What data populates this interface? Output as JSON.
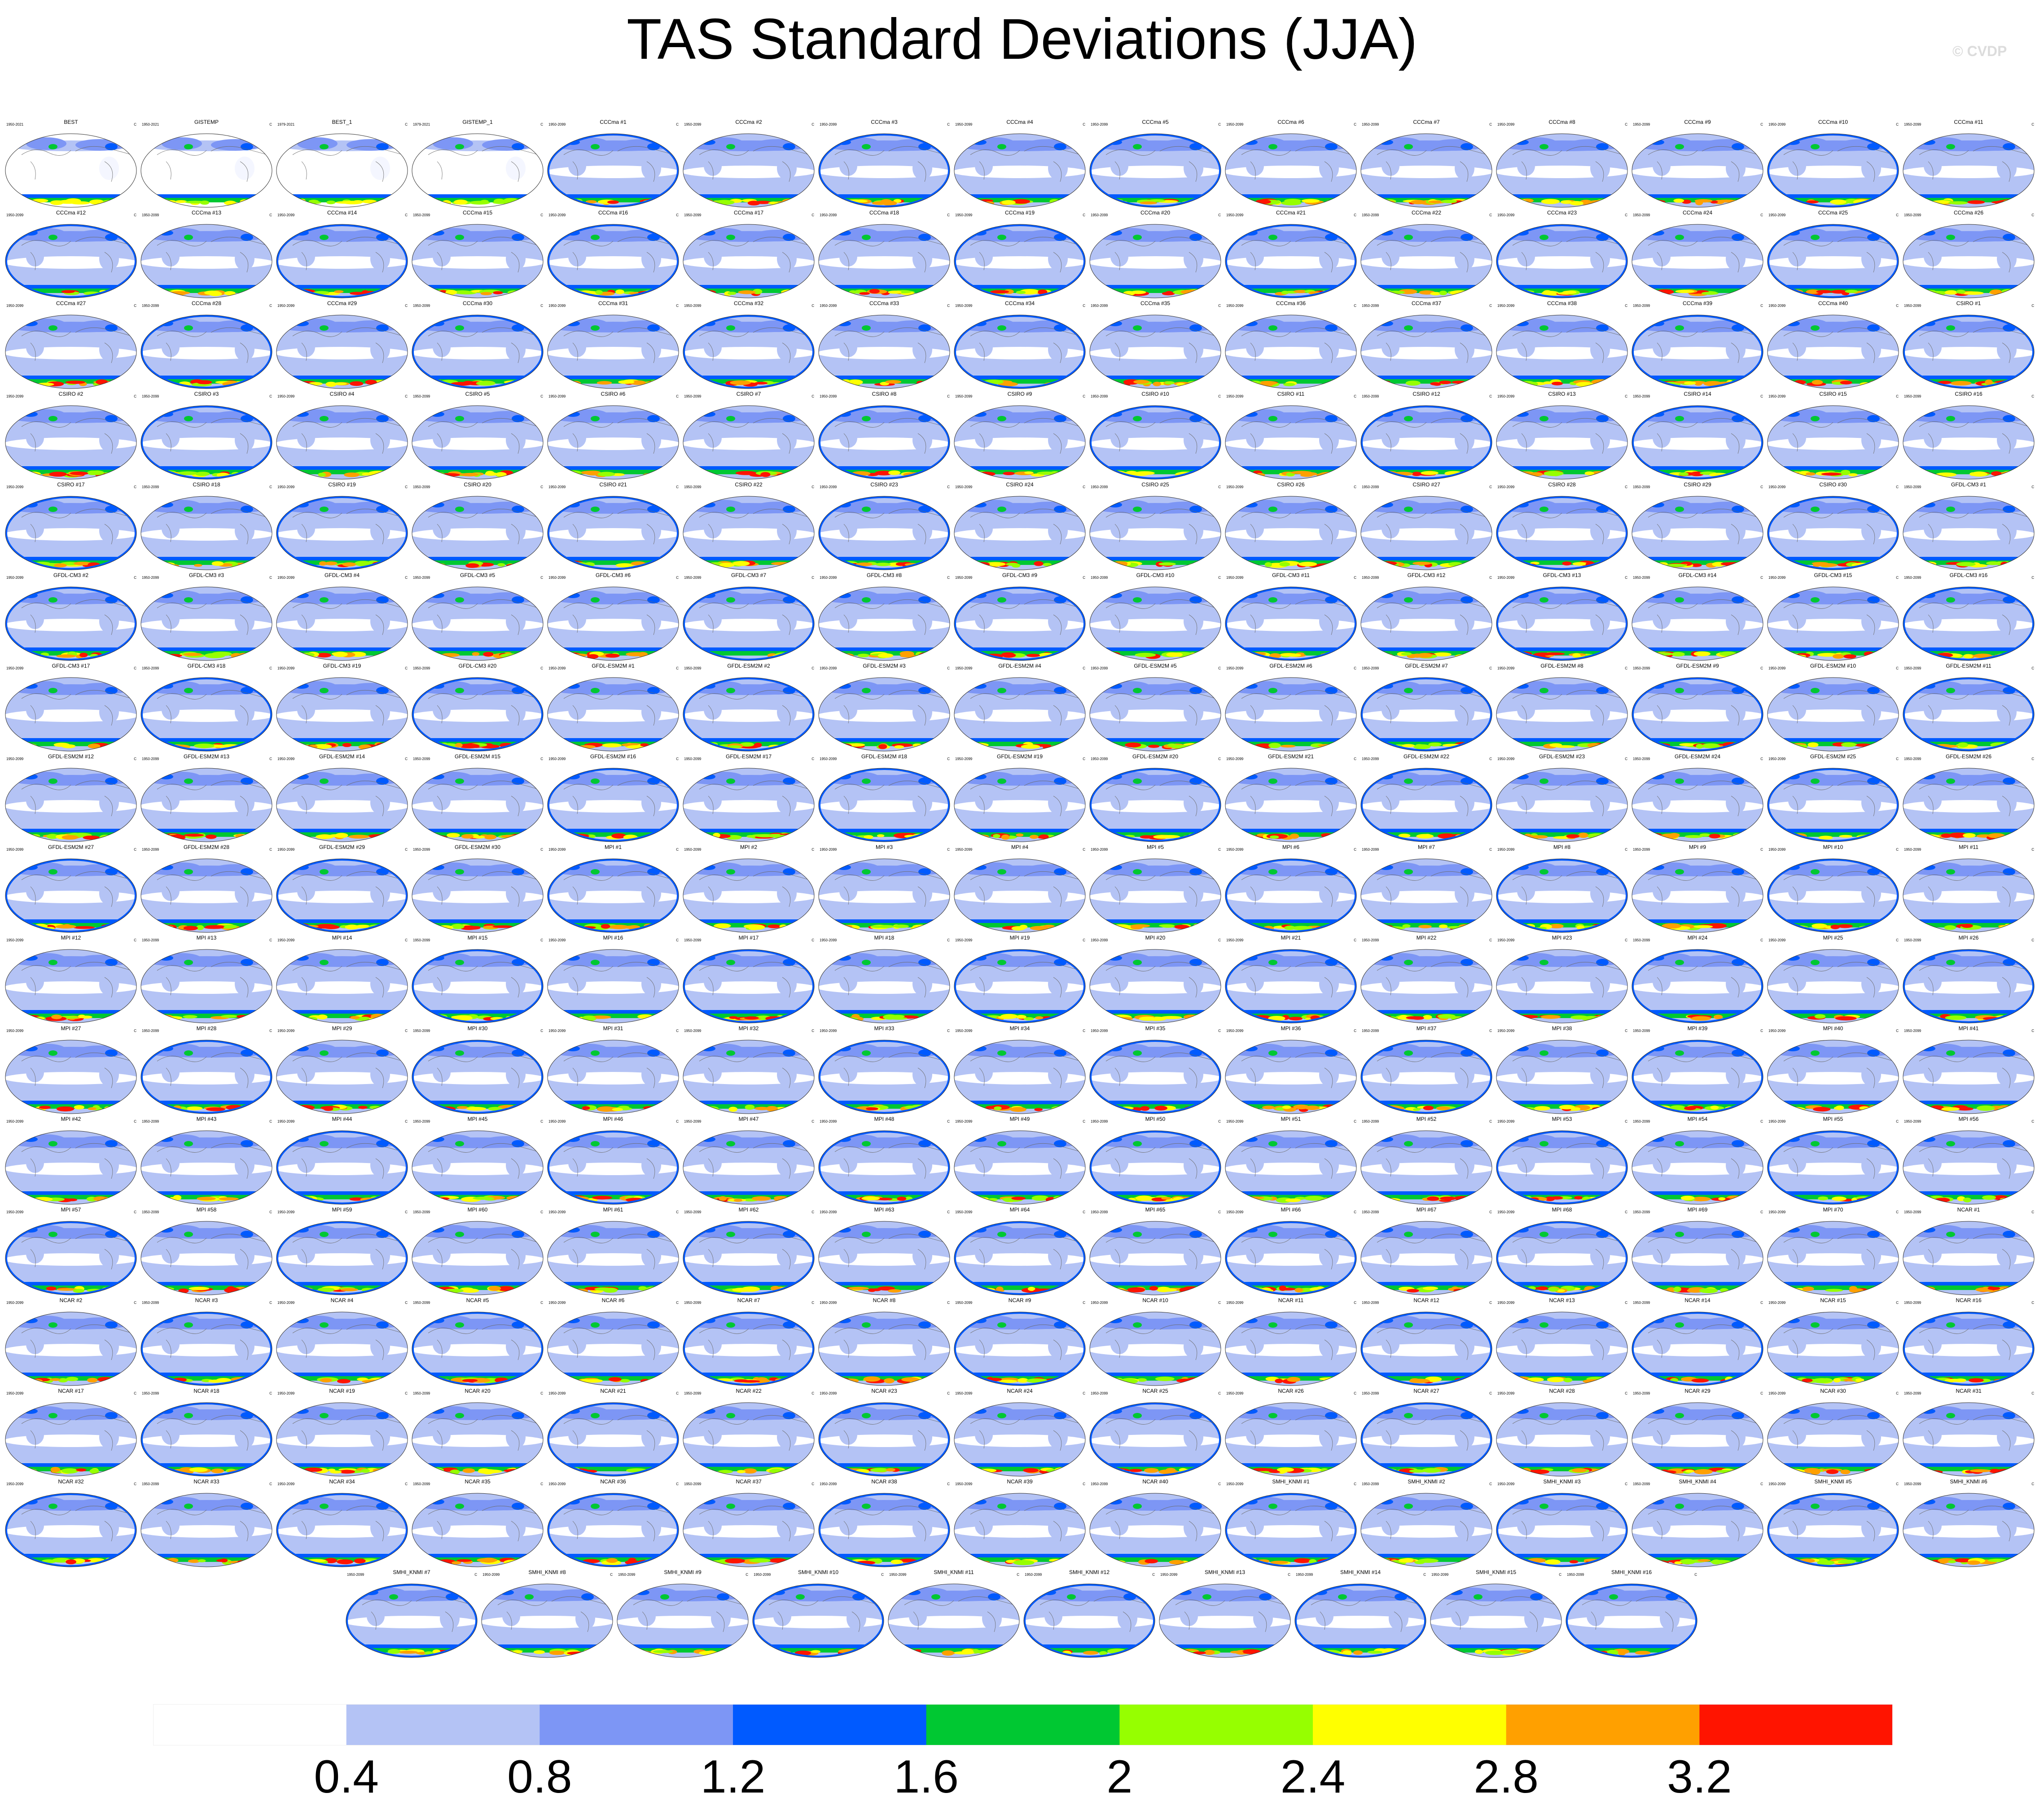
{
  "chart_data": {
    "type": "heatmap",
    "title": "TAS Standard Deviations (JJA)",
    "watermark": "© CVDP",
    "units": "C",
    "colorbar": {
      "levels": [
        0.4,
        0.8,
        1.2,
        1.6,
        2,
        2.4,
        2.8,
        3.2
      ],
      "tick_labels": [
        "0.4",
        "0.8",
        "1.2",
        "1.6",
        "2",
        "2.4",
        "2.8",
        "3.2"
      ],
      "colors": [
        "#ffffff",
        "#b4c3f5",
        "#7d96f5",
        "#005aff",
        "#00c832",
        "#96ff00",
        "#ffff00",
        "#ffa000",
        "#ff1400"
      ]
    },
    "panels": [
      {
        "name": "BEST",
        "period": "1950-2021"
      },
      {
        "name": "GISTEMP",
        "period": "1950-2021"
      },
      {
        "name": "BEST_1",
        "period": "1979-2021"
      },
      {
        "name": "GISTEMP_1",
        "period": "1979-2021"
      },
      {
        "name": "CCCma #1",
        "period": "1950-2099"
      },
      {
        "name": "CCCma #2",
        "period": "1950-2099"
      },
      {
        "name": "CCCma #3",
        "period": "1950-2099"
      },
      {
        "name": "CCCma #4",
        "period": "1950-2099"
      },
      {
        "name": "CCCma #5",
        "period": "1950-2099"
      },
      {
        "name": "CCCma #6",
        "period": "1950-2099"
      },
      {
        "name": "CCCma #7",
        "period": "1950-2099"
      },
      {
        "name": "CCCma #8",
        "period": "1950-2099"
      },
      {
        "name": "CCCma #9",
        "period": "1950-2099"
      },
      {
        "name": "CCCma #10",
        "period": "1950-2099"
      },
      {
        "name": "CCCma #11",
        "period": "1950-2099"
      },
      {
        "name": "CCCma #12",
        "period": "1950-2099"
      },
      {
        "name": "CCCma #13",
        "period": "1950-2099"
      },
      {
        "name": "CCCma #14",
        "period": "1950-2099"
      },
      {
        "name": "CCCma #15",
        "period": "1950-2099"
      },
      {
        "name": "CCCma #16",
        "period": "1950-2099"
      },
      {
        "name": "CCCma #17",
        "period": "1950-2099"
      },
      {
        "name": "CCCma #18",
        "period": "1950-2099"
      },
      {
        "name": "CCCma #19",
        "period": "1950-2099"
      },
      {
        "name": "CCCma #20",
        "period": "1950-2099"
      },
      {
        "name": "CCCma #21",
        "period": "1950-2099"
      },
      {
        "name": "CCCma #22",
        "period": "1950-2099"
      },
      {
        "name": "CCCma #23",
        "period": "1950-2099"
      },
      {
        "name": "CCCma #24",
        "period": "1950-2099"
      },
      {
        "name": "CCCma #25",
        "period": "1950-2099"
      },
      {
        "name": "CCCma #26",
        "period": "1950-2099"
      },
      {
        "name": "CCCma #27",
        "period": "1950-2099"
      },
      {
        "name": "CCCma #28",
        "period": "1950-2099"
      },
      {
        "name": "CCCma #29",
        "period": "1950-2099"
      },
      {
        "name": "CCCma #30",
        "period": "1950-2099"
      },
      {
        "name": "CCCma #31",
        "period": "1950-2099"
      },
      {
        "name": "CCCma #32",
        "period": "1950-2099"
      },
      {
        "name": "CCCma #33",
        "period": "1950-2099"
      },
      {
        "name": "CCCma #34",
        "period": "1950-2099"
      },
      {
        "name": "CCCma #35",
        "period": "1950-2099"
      },
      {
        "name": "CCCma #36",
        "period": "1950-2099"
      },
      {
        "name": "CCCma #37",
        "period": "1950-2099"
      },
      {
        "name": "CCCma #38",
        "period": "1950-2099"
      },
      {
        "name": "CCCma #39",
        "period": "1950-2099"
      },
      {
        "name": "CCCma #40",
        "period": "1950-2099"
      },
      {
        "name": "CSIRO #1",
        "period": "1950-2099"
      },
      {
        "name": "CSIRO #2",
        "period": "1950-2099"
      },
      {
        "name": "CSIRO #3",
        "period": "1950-2099"
      },
      {
        "name": "CSIRO #4",
        "period": "1950-2099"
      },
      {
        "name": "CSIRO #5",
        "period": "1950-2099"
      },
      {
        "name": "CSIRO #6",
        "period": "1950-2099"
      },
      {
        "name": "CSIRO #7",
        "period": "1950-2099"
      },
      {
        "name": "CSIRO #8",
        "period": "1950-2099"
      },
      {
        "name": "CSIRO #9",
        "period": "1950-2099"
      },
      {
        "name": "CSIRO #10",
        "period": "1950-2099"
      },
      {
        "name": "CSIRO #11",
        "period": "1950-2099"
      },
      {
        "name": "CSIRO #12",
        "period": "1950-2099"
      },
      {
        "name": "CSIRO #13",
        "period": "1950-2099"
      },
      {
        "name": "CSIRO #14",
        "period": "1950-2099"
      },
      {
        "name": "CSIRO #15",
        "period": "1950-2099"
      },
      {
        "name": "CSIRO #16",
        "period": "1950-2099"
      },
      {
        "name": "CSIRO #17",
        "period": "1950-2099"
      },
      {
        "name": "CSIRO #18",
        "period": "1950-2099"
      },
      {
        "name": "CSIRO #19",
        "period": "1950-2099"
      },
      {
        "name": "CSIRO #20",
        "period": "1950-2099"
      },
      {
        "name": "CSIRO #21",
        "period": "1950-2099"
      },
      {
        "name": "CSIRO #22",
        "period": "1950-2099"
      },
      {
        "name": "CSIRO #23",
        "period": "1950-2099"
      },
      {
        "name": "CSIRO #24",
        "period": "1950-2099"
      },
      {
        "name": "CSIRO #25",
        "period": "1950-2099"
      },
      {
        "name": "CSIRO #26",
        "period": "1950-2099"
      },
      {
        "name": "CSIRO #27",
        "period": "1950-2099"
      },
      {
        "name": "CSIRO #28",
        "period": "1950-2099"
      },
      {
        "name": "CSIRO #29",
        "period": "1950-2099"
      },
      {
        "name": "CSIRO #30",
        "period": "1950-2099"
      },
      {
        "name": "GFDL-CM3 #1",
        "period": "1950-2099"
      },
      {
        "name": "GFDL-CM3 #2",
        "period": "1950-2099"
      },
      {
        "name": "GFDL-CM3 #3",
        "period": "1950-2099"
      },
      {
        "name": "GFDL-CM3 #4",
        "period": "1950-2099"
      },
      {
        "name": "GFDL-CM3 #5",
        "period": "1950-2099"
      },
      {
        "name": "GFDL-CM3 #6",
        "period": "1950-2099"
      },
      {
        "name": "GFDL-CM3 #7",
        "period": "1950-2099"
      },
      {
        "name": "GFDL-CM3 #8",
        "period": "1950-2099"
      },
      {
        "name": "GFDL-CM3 #9",
        "period": "1950-2099"
      },
      {
        "name": "GFDL-CM3 #10",
        "period": "1950-2099"
      },
      {
        "name": "GFDL-CM3 #11",
        "period": "1950-2099"
      },
      {
        "name": "GFDL-CM3 #12",
        "period": "1950-2099"
      },
      {
        "name": "GFDL-CM3 #13",
        "period": "1950-2099"
      },
      {
        "name": "GFDL-CM3 #14",
        "period": "1950-2099"
      },
      {
        "name": "GFDL-CM3 #15",
        "period": "1950-2099"
      },
      {
        "name": "GFDL-CM3 #16",
        "period": "1950-2099"
      },
      {
        "name": "GFDL-CM3 #17",
        "period": "1950-2099"
      },
      {
        "name": "GFDL-CM3 #18",
        "period": "1950-2099"
      },
      {
        "name": "GFDL-CM3 #19",
        "period": "1950-2099"
      },
      {
        "name": "GFDL-CM3 #20",
        "period": "1950-2099"
      },
      {
        "name": "GFDL-ESM2M #1",
        "period": "1950-2099"
      },
      {
        "name": "GFDL-ESM2M #2",
        "period": "1950-2099"
      },
      {
        "name": "GFDL-ESM2M #3",
        "period": "1950-2099"
      },
      {
        "name": "GFDL-ESM2M #4",
        "period": "1950-2099"
      },
      {
        "name": "GFDL-ESM2M #5",
        "period": "1950-2099"
      },
      {
        "name": "GFDL-ESM2M #6",
        "period": "1950-2099"
      },
      {
        "name": "GFDL-ESM2M #7",
        "period": "1950-2099"
      },
      {
        "name": "GFDL-ESM2M #8",
        "period": "1950-2099"
      },
      {
        "name": "GFDL-ESM2M #9",
        "period": "1950-2099"
      },
      {
        "name": "GFDL-ESM2M #10",
        "period": "1950-2099"
      },
      {
        "name": "GFDL-ESM2M #11",
        "period": "1950-2099"
      },
      {
        "name": "GFDL-ESM2M #12",
        "period": "1950-2099"
      },
      {
        "name": "GFDL-ESM2M #13",
        "period": "1950-2099"
      },
      {
        "name": "GFDL-ESM2M #14",
        "period": "1950-2099"
      },
      {
        "name": "GFDL-ESM2M #15",
        "period": "1950-2099"
      },
      {
        "name": "GFDL-ESM2M #16",
        "period": "1950-2099"
      },
      {
        "name": "GFDL-ESM2M #17",
        "period": "1950-2099"
      },
      {
        "name": "GFDL-ESM2M #18",
        "period": "1950-2099"
      },
      {
        "name": "GFDL-ESM2M #19",
        "period": "1950-2099"
      },
      {
        "name": "GFDL-ESM2M #20",
        "period": "1950-2099"
      },
      {
        "name": "GFDL-ESM2M #21",
        "period": "1950-2099"
      },
      {
        "name": "GFDL-ESM2M #22",
        "period": "1950-2099"
      },
      {
        "name": "GFDL-ESM2M #23",
        "period": "1950-2099"
      },
      {
        "name": "GFDL-ESM2M #24",
        "period": "1950-2099"
      },
      {
        "name": "GFDL-ESM2M #25",
        "period": "1950-2099"
      },
      {
        "name": "GFDL-ESM2M #26",
        "period": "1950-2099"
      },
      {
        "name": "GFDL-ESM2M #27",
        "period": "1950-2099"
      },
      {
        "name": "GFDL-ESM2M #28",
        "period": "1950-2099"
      },
      {
        "name": "GFDL-ESM2M #29",
        "period": "1950-2099"
      },
      {
        "name": "GFDL-ESM2M #30",
        "period": "1950-2099"
      },
      {
        "name": "MPI #1",
        "period": "1950-2099"
      },
      {
        "name": "MPI #2",
        "period": "1950-2099"
      },
      {
        "name": "MPI #3",
        "period": "1950-2099"
      },
      {
        "name": "MPI #4",
        "period": "1950-2099"
      },
      {
        "name": "MPI #5",
        "period": "1950-2099"
      },
      {
        "name": "MPI #6",
        "period": "1950-2099"
      },
      {
        "name": "MPI #7",
        "period": "1950-2099"
      },
      {
        "name": "MPI #8",
        "period": "1950-2099"
      },
      {
        "name": "MPI #9",
        "period": "1950-2099"
      },
      {
        "name": "MPI #10",
        "period": "1950-2099"
      },
      {
        "name": "MPI #11",
        "period": "1950-2099"
      },
      {
        "name": "MPI #12",
        "period": "1950-2099"
      },
      {
        "name": "MPI #13",
        "period": "1950-2099"
      },
      {
        "name": "MPI #14",
        "period": "1950-2099"
      },
      {
        "name": "MPI #15",
        "period": "1950-2099"
      },
      {
        "name": "MPI #16",
        "period": "1950-2099"
      },
      {
        "name": "MPI #17",
        "period": "1950-2099"
      },
      {
        "name": "MPI #18",
        "period": "1950-2099"
      },
      {
        "name": "MPI #19",
        "period": "1950-2099"
      },
      {
        "name": "MPI #20",
        "period": "1950-2099"
      },
      {
        "name": "MPI #21",
        "period": "1950-2099"
      },
      {
        "name": "MPI #22",
        "period": "1950-2099"
      },
      {
        "name": "MPI #23",
        "period": "1950-2099"
      },
      {
        "name": "MPI #24",
        "period": "1950-2099"
      },
      {
        "name": "MPI #25",
        "period": "1950-2099"
      },
      {
        "name": "MPI #26",
        "period": "1950-2099"
      },
      {
        "name": "MPI #27",
        "period": "1950-2099"
      },
      {
        "name": "MPI #28",
        "period": "1950-2099"
      },
      {
        "name": "MPI #29",
        "period": "1950-2099"
      },
      {
        "name": "MPI #30",
        "period": "1950-2099"
      },
      {
        "name": "MPI #31",
        "period": "1950-2099"
      },
      {
        "name": "MPI #32",
        "period": "1950-2099"
      },
      {
        "name": "MPI #33",
        "period": "1950-2099"
      },
      {
        "name": "MPI #34",
        "period": "1950-2099"
      },
      {
        "name": "MPI #35",
        "period": "1950-2099"
      },
      {
        "name": "MPI #36",
        "period": "1950-2099"
      },
      {
        "name": "MPI #37",
        "period": "1950-2099"
      },
      {
        "name": "MPI #38",
        "period": "1950-2099"
      },
      {
        "name": "MPI #39",
        "period": "1950-2099"
      },
      {
        "name": "MPI #40",
        "period": "1950-2099"
      },
      {
        "name": "MPI #41",
        "period": "1950-2099"
      },
      {
        "name": "MPI #42",
        "period": "1950-2099"
      },
      {
        "name": "MPI #43",
        "period": "1950-2099"
      },
      {
        "name": "MPI #44",
        "period": "1950-2099"
      },
      {
        "name": "MPI #45",
        "period": "1950-2099"
      },
      {
        "name": "MPI #46",
        "period": "1950-2099"
      },
      {
        "name": "MPI #47",
        "period": "1950-2099"
      },
      {
        "name": "MPI #48",
        "period": "1950-2099"
      },
      {
        "name": "MPI #49",
        "period": "1950-2099"
      },
      {
        "name": "MPI #50",
        "period": "1950-2099"
      },
      {
        "name": "MPI #51",
        "period": "1950-2099"
      },
      {
        "name": "MPI #52",
        "period": "1950-2099"
      },
      {
        "name": "MPI #53",
        "period": "1950-2099"
      },
      {
        "name": "MPI #54",
        "period": "1950-2099"
      },
      {
        "name": "MPI #55",
        "period": "1950-2099"
      },
      {
        "name": "MPI #56",
        "period": "1950-2099"
      },
      {
        "name": "MPI #57",
        "period": "1950-2099"
      },
      {
        "name": "MPI #58",
        "period": "1950-2099"
      },
      {
        "name": "MPI #59",
        "period": "1950-2099"
      },
      {
        "name": "MPI #60",
        "period": "1950-2099"
      },
      {
        "name": "MPI #61",
        "period": "1950-2099"
      },
      {
        "name": "MPI #62",
        "period": "1950-2099"
      },
      {
        "name": "MPI #63",
        "period": "1950-2099"
      },
      {
        "name": "MPI #64",
        "period": "1950-2099"
      },
      {
        "name": "MPI #65",
        "period": "1950-2099"
      },
      {
        "name": "MPI #66",
        "period": "1950-2099"
      },
      {
        "name": "MPI #67",
        "period": "1950-2099"
      },
      {
        "name": "MPI #68",
        "period": "1950-2099"
      },
      {
        "name": "MPI #69",
        "period": "1950-2099"
      },
      {
        "name": "MPI #70",
        "period": "1950-2099"
      },
      {
        "name": "NCAR #1",
        "period": "1950-2099"
      },
      {
        "name": "NCAR #2",
        "period": "1950-2099"
      },
      {
        "name": "NCAR #3",
        "period": "1950-2099"
      },
      {
        "name": "NCAR #4",
        "period": "1950-2099"
      },
      {
        "name": "NCAR #5",
        "period": "1950-2099"
      },
      {
        "name": "NCAR #6",
        "period": "1950-2099"
      },
      {
        "name": "NCAR #7",
        "period": "1950-2099"
      },
      {
        "name": "NCAR #8",
        "period": "1950-2099"
      },
      {
        "name": "NCAR #9",
        "period": "1950-2099"
      },
      {
        "name": "NCAR #10",
        "period": "1950-2099"
      },
      {
        "name": "NCAR #11",
        "period": "1950-2099"
      },
      {
        "name": "NCAR #12",
        "period": "1950-2099"
      },
      {
        "name": "NCAR #13",
        "period": "1950-2099"
      },
      {
        "name": "NCAR #14",
        "period": "1950-2099"
      },
      {
        "name": "NCAR #15",
        "period": "1950-2099"
      },
      {
        "name": "NCAR #16",
        "period": "1950-2099"
      },
      {
        "name": "NCAR #17",
        "period": "1950-2099"
      },
      {
        "name": "NCAR #18",
        "period": "1950-2099"
      },
      {
        "name": "NCAR #19",
        "period": "1950-2099"
      },
      {
        "name": "NCAR #20",
        "period": "1950-2099"
      },
      {
        "name": "NCAR #21",
        "period": "1950-2099"
      },
      {
        "name": "NCAR #22",
        "period": "1950-2099"
      },
      {
        "name": "NCAR #23",
        "period": "1950-2099"
      },
      {
        "name": "NCAR #24",
        "period": "1950-2099"
      },
      {
        "name": "NCAR #25",
        "period": "1950-2099"
      },
      {
        "name": "NCAR #26",
        "period": "1950-2099"
      },
      {
        "name": "NCAR #27",
        "period": "1950-2099"
      },
      {
        "name": "NCAR #28",
        "period": "1950-2099"
      },
      {
        "name": "NCAR #29",
        "period": "1950-2099"
      },
      {
        "name": "NCAR #30",
        "period": "1950-2099"
      },
      {
        "name": "NCAR #31",
        "period": "1950-2099"
      },
      {
        "name": "NCAR #32",
        "period": "1950-2099"
      },
      {
        "name": "NCAR #33",
        "period": "1950-2099"
      },
      {
        "name": "NCAR #34",
        "period": "1950-2099"
      },
      {
        "name": "NCAR #35",
        "period": "1950-2099"
      },
      {
        "name": "NCAR #36",
        "period": "1950-2099"
      },
      {
        "name": "NCAR #37",
        "period": "1950-2099"
      },
      {
        "name": "NCAR #38",
        "period": "1950-2099"
      },
      {
        "name": "NCAR #39",
        "period": "1950-2099"
      },
      {
        "name": "NCAR #40",
        "period": "1950-2099"
      },
      {
        "name": "SMHI_KNMI #1",
        "period": "1950-2099"
      },
      {
        "name": "SMHI_KNMI #2",
        "period": "1950-2099"
      },
      {
        "name": "SMHI_KNMI #3",
        "period": "1950-2099"
      },
      {
        "name": "SMHI_KNMI #4",
        "period": "1950-2099"
      },
      {
        "name": "SMHI_KNMI #5",
        "period": "1950-2099"
      },
      {
        "name": "SMHI_KNMI #6",
        "period": "1950-2099"
      },
      {
        "name": "SMHI_KNMI #7",
        "period": "1950-2099"
      },
      {
        "name": "SMHI_KNMI #8",
        "period": "1950-2099"
      },
      {
        "name": "SMHI_KNMI #9",
        "period": "1950-2099"
      },
      {
        "name": "SMHI_KNMI #10",
        "period": "1950-2099"
      },
      {
        "name": "SMHI_KNMI #11",
        "period": "1950-2099"
      },
      {
        "name": "SMHI_KNMI #12",
        "period": "1950-2099"
      },
      {
        "name": "SMHI_KNMI #13",
        "period": "1950-2099"
      },
      {
        "name": "SMHI_KNMI #14",
        "period": "1950-2099"
      },
      {
        "name": "SMHI_KNMI #15",
        "period": "1950-2099"
      },
      {
        "name": "SMHI_KNMI #16",
        "period": "1950-2099"
      }
    ]
  }
}
